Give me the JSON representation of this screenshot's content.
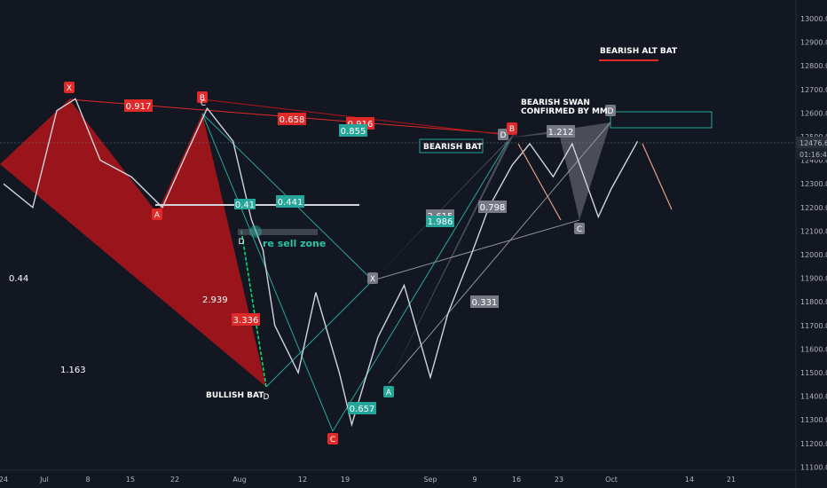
{
  "chart_data": {
    "type": "candlestick",
    "price_axis": {
      "ticks": [
        "13000.0",
        "12900.0",
        "12800.0",
        "12700.0",
        "12600.0",
        "12500.0",
        "12400.0",
        "12300.0",
        "12200.0",
        "12100.0",
        "12000.0",
        "11900.0",
        "11800.0",
        "11700.0",
        "11600.0",
        "11500.0",
        "11400.0",
        "11300.0",
        "11200.0",
        "11100.0"
      ],
      "range": [
        11080,
        13050
      ],
      "current_price": "12476.6",
      "countdown": "01:16:48"
    },
    "time_axis": {
      "ticks": [
        "24",
        "Jul",
        "8",
        "15",
        "22",
        "Aug",
        "12",
        "19",
        "Sep",
        "9",
        "16",
        "23",
        "Oct",
        "14",
        "21"
      ]
    },
    "price_path": [
      {
        "date": "2020-06-24",
        "price": 12300
      },
      {
        "date": "2020-06-29",
        "price": 12200
      },
      {
        "date": "2020-07-03",
        "price": 12610
      },
      {
        "date": "2020-07-06",
        "price": 12660
      },
      {
        "date": "2020-07-10",
        "price": 12400
      },
      {
        "date": "2020-07-15",
        "price": 12330
      },
      {
        "date": "2020-07-20",
        "price": 12200
      },
      {
        "date": "2020-07-24",
        "price": 12440
      },
      {
        "date": "2020-07-27",
        "price": 12620
      },
      {
        "date": "2020-07-31",
        "price": 12480
      },
      {
        "date": "2020-08-03",
        "price": 12150
      },
      {
        "date": "2020-08-05",
        "price": 12020
      },
      {
        "date": "2020-08-07",
        "price": 11700
      },
      {
        "date": "2020-08-11",
        "price": 11500
      },
      {
        "date": "2020-08-14",
        "price": 11840
      },
      {
        "date": "2020-08-18",
        "price": 11500
      },
      {
        "date": "2020-08-20",
        "price": 11280
      },
      {
        "date": "2020-08-24",
        "price": 11650
      },
      {
        "date": "2020-08-28",
        "price": 11870
      },
      {
        "date": "2020-09-01",
        "price": 11480
      },
      {
        "date": "2020-09-04",
        "price": 11750
      },
      {
        "date": "2020-09-08",
        "price": 12000
      },
      {
        "date": "2020-09-11",
        "price": 12200
      },
      {
        "date": "2020-09-15",
        "price": 12380
      },
      {
        "date": "2020-09-18",
        "price": 12470
      },
      {
        "date": "2020-09-22",
        "price": 12330
      },
      {
        "date": "2020-09-25",
        "price": 12470
      },
      {
        "date": "2020-09-29",
        "price": 12160
      },
      {
        "date": "2020-10-01",
        "price": 12280
      },
      {
        "date": "2020-10-05",
        "price": 12480
      }
    ],
    "annotations": {
      "pattern_points": [
        "X",
        "B",
        "A",
        "D",
        "C",
        "X",
        "A",
        "C",
        "D",
        "B",
        "D",
        "C",
        "D"
      ],
      "ratio_tags": [
        "0.917",
        "0.658",
        "0.916",
        "0.855",
        "0.441",
        "3.336",
        "0.657",
        "0.331",
        "1.212",
        "0.798",
        "2.615",
        "1.986",
        "0.41"
      ],
      "text_notes": [
        "0.44",
        "2.939",
        "1.163"
      ],
      "labels": {
        "bearish_alt_bat": "BEARISH ALT BAT",
        "bearish_swan": "BEARISH SWAN",
        "confirmed_by_mm": "CONFIRMED BY MM",
        "bearish_bat": "BEARISH BAT",
        "bullish_bat": "BULLISH BAT",
        "resell_zone": "re sell zone"
      }
    }
  },
  "colors": {
    "background": "#131722",
    "bull_pattern": "#b2151a",
    "bear_pattern": "#8e9198",
    "teal": "#26a69a",
    "red_tag": "#e02a2a",
    "arrow_orange": "#e7a085",
    "green": "#00e676"
  }
}
